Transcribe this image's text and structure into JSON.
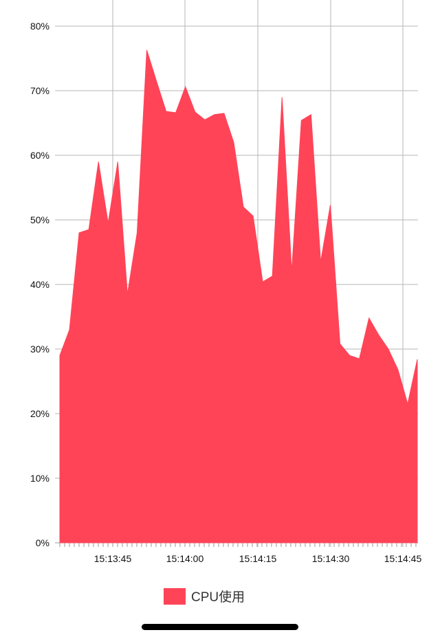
{
  "chart_data": {
    "type": "area",
    "ylim": [
      0,
      80
    ],
    "y_ticks": [
      "0%",
      "10%",
      "20%",
      "30%",
      "40%",
      "50%",
      "60%",
      "70%",
      "80%"
    ],
    "x_ticks": [
      "15:13:45",
      "15:14:00",
      "15:14:15",
      "15:14:30",
      "15:14:45"
    ],
    "grid": true,
    "legend_position": "bottom-center",
    "series": [
      {
        "name": "CPU使用",
        "color": "#ff4458",
        "values": [
          29,
          33,
          48,
          48.5,
          59,
          49.5,
          59,
          38.5,
          48,
          76.3,
          71.5,
          66.8,
          66.6,
          70.6,
          66.7,
          65.5,
          66.3,
          66.5,
          62,
          52,
          50.6,
          40.4,
          41.3,
          69,
          42,
          65.4,
          66.3,
          43.5,
          52.3,
          30.8,
          29,
          28.5,
          34.8,
          32.2,
          30,
          26.8,
          21.5,
          28.4
        ]
      }
    ]
  },
  "legend": {
    "label": "CPU使用"
  }
}
